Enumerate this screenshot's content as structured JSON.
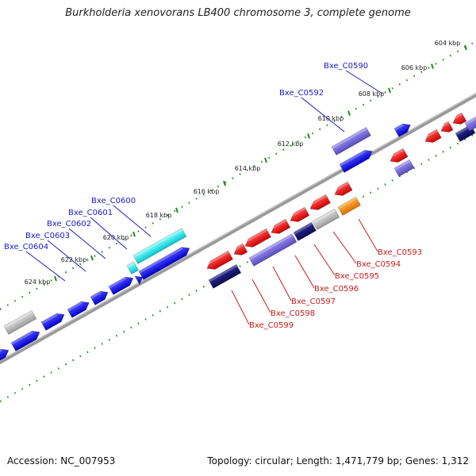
{
  "title": "Burkholderia xenovorans LB400 chromosome 3, complete genome",
  "footer": {
    "accession": "Accession: NC_007953",
    "summary": "Topology: circular; Length: 1,471,779 bp; Genes: 1,312"
  },
  "colors": {
    "backbone": "#888888",
    "tick": "#1f8a1f",
    "forward_label": "#1a1acc",
    "reverse_label": "#cc1a1a"
  },
  "ticks": [
    {
      "label": "604 kbp"
    },
    {
      "label": "606 kbp"
    },
    {
      "label": "608 kbp"
    },
    {
      "label": "610 kbp"
    },
    {
      "label": "612 kbp"
    },
    {
      "label": "614 kbp"
    },
    {
      "label": "616 kbp"
    },
    {
      "label": "618 kbp"
    },
    {
      "label": "620 kbp"
    },
    {
      "label": "622 kbp"
    },
    {
      "label": "624 kbp"
    }
  ],
  "gene_labels": [
    {
      "text": "Bxe_C0590",
      "strand": "forward"
    },
    {
      "text": "Bxe_C0592",
      "strand": "forward"
    },
    {
      "text": "Bxe_C0600",
      "strand": "forward"
    },
    {
      "text": "Bxe_C0601",
      "strand": "forward"
    },
    {
      "text": "Bxe_C0602",
      "strand": "forward"
    },
    {
      "text": "Bxe_C0603",
      "strand": "forward"
    },
    {
      "text": "Bxe_C0604",
      "strand": "forward"
    },
    {
      "text": "Bxe_C0593",
      "strand": "reverse"
    },
    {
      "text": "Bxe_C0594",
      "strand": "reverse"
    },
    {
      "text": "Bxe_C0595",
      "strand": "reverse"
    },
    {
      "text": "Bxe_C0596",
      "strand": "reverse"
    },
    {
      "text": "Bxe_C0597",
      "strand": "reverse"
    },
    {
      "text": "Bxe_C0598",
      "strand": "reverse"
    },
    {
      "text": "Bxe_C0599",
      "strand": "reverse"
    }
  ]
}
